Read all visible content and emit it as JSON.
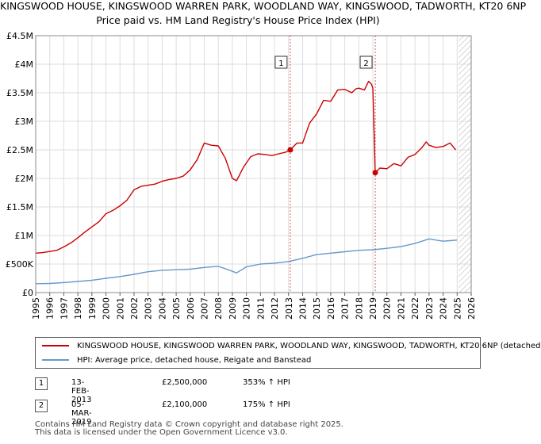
{
  "header": {
    "title_line1": "KINGSWOOD HOUSE, KINGSWOOD WARREN PARK, WOODLAND WAY, KINGSWOOD, TADWORTH, KT20 6NP",
    "title_line2": "Price paid vs. HM Land Registry's House Price Index (HPI)"
  },
  "colors": {
    "property": "#cc0000",
    "hpi": "#6699cc",
    "marker_line": "#cc0000",
    "grid": "#dddddd"
  },
  "legend": {
    "property_label": "KINGSWOOD HOUSE, KINGSWOOD WARREN PARK, WOODLAND WAY, KINGSWOOD, TADWORTH, KT20 6NP (detached",
    "hpi_label": "HPI: Average price, detached house, Reigate and Banstead"
  },
  "sales": [
    {
      "id": "1",
      "date": "13-FEB-2013",
      "price": "£2,500,000",
      "hpi": "353% ↑ HPI"
    },
    {
      "id": "2",
      "date": "05-MAR-2019",
      "price": "£2,100,000",
      "hpi": "175% ↑ HPI"
    }
  ],
  "footer": {
    "line1": "Contains HM Land Registry data © Crown copyright and database right 2025.",
    "line2": "This data is licensed under the Open Government Licence v3.0."
  },
  "chart_data": {
    "type": "line",
    "title": "KINGSWOOD HOUSE, KINGSWOOD WARREN PARK, WOODLAND WAY, KINGSWOOD, TADWORTH, KT20 6NP",
    "subtitle": "Price paid vs. HM Land Registry's House Price Index (HPI)",
    "xlabel": "",
    "ylabel": "",
    "xlim": [
      1995,
      2026
    ],
    "ylim": [
      0,
      4500000
    ],
    "y_ticks": [
      0,
      500000,
      1000000,
      1500000,
      2000000,
      2500000,
      3000000,
      3500000,
      4000000,
      4500000
    ],
    "y_tick_labels": [
      "£0",
      "£500K",
      "£1M",
      "£1.5M",
      "£2M",
      "£2.5M",
      "£3M",
      "£3.5M",
      "£4M",
      "£4.5M"
    ],
    "x_ticks": [
      1995,
      1996,
      1997,
      1998,
      1999,
      2000,
      2001,
      2002,
      2003,
      2004,
      2005,
      2006,
      2007,
      2008,
      2009,
      2010,
      2011,
      2012,
      2013,
      2014,
      2015,
      2016,
      2017,
      2018,
      2019,
      2020,
      2021,
      2022,
      2023,
      2024,
      2025,
      2026
    ],
    "x_tick_labels": [
      "1995",
      "1996",
      "1997",
      "1998",
      "1999",
      "2000",
      "2001",
      "2002",
      "2003",
      "2004",
      "2005",
      "2006",
      "2007",
      "2008",
      "2009",
      "2010",
      "2011",
      "2012",
      "2013",
      "2014",
      "2015",
      "2016",
      "2017",
      "2018",
      "2019",
      "2020",
      "2021",
      "2022",
      "2023",
      "2024",
      "2025",
      "2026"
    ],
    "grid": true,
    "forecast_hatch_from": 2025.1,
    "series": [
      {
        "name": "KINGSWOOD HOUSE, KINGSWOOD WARREN PARK, WOODLAND WAY, KINGSWOOD, TADWORTH, KT20 6NP (detached",
        "x": [
          1995.0,
          1995.5,
          1996.0,
          1996.5,
          1997.0,
          1997.5,
          1998.0,
          1998.5,
          1999.0,
          1999.5,
          2000.0,
          2000.5,
          2001.0,
          2001.5,
          2002.0,
          2002.5,
          2003.0,
          2003.5,
          2004.0,
          2004.5,
          2005.0,
          2005.5,
          2006.0,
          2006.5,
          2007.0,
          2007.5,
          2008.0,
          2008.5,
          2009.0,
          2009.3,
          2009.8,
          2010.3,
          2010.8,
          2011.3,
          2011.8,
          2012.3,
          2012.8,
          2013.12,
          2013.6,
          2014.0,
          2014.5,
          2015.0,
          2015.5,
          2016.0,
          2016.5,
          2017.0,
          2017.5,
          2017.8,
          2018.0,
          2018.4,
          2018.7,
          2018.9,
          2019.0,
          2019.17,
          2019.5,
          2020.0,
          2020.5,
          2021.0,
          2021.5,
          2022.0,
          2022.5,
          2022.8,
          2023.0,
          2023.5,
          2024.0,
          2024.5,
          2024.9
        ],
        "y": [
          690000,
          700000,
          720000,
          740000,
          800000,
          870000,
          960000,
          1060000,
          1150000,
          1240000,
          1380000,
          1440000,
          1520000,
          1620000,
          1800000,
          1860000,
          1880000,
          1900000,
          1950000,
          1980000,
          2000000,
          2040000,
          2150000,
          2330000,
          2620000,
          2580000,
          2570000,
          2350000,
          2000000,
          1960000,
          2200000,
          2380000,
          2430000,
          2420000,
          2400000,
          2430000,
          2460000,
          2500000,
          2620000,
          2620000,
          2970000,
          3130000,
          3370000,
          3350000,
          3550000,
          3560000,
          3500000,
          3570000,
          3580000,
          3550000,
          3700000,
          3650000,
          3580000,
          2100000,
          2180000,
          2170000,
          2260000,
          2220000,
          2370000,
          2420000,
          2540000,
          2640000,
          2580000,
          2540000,
          2560000,
          2620000,
          2500000
        ]
      },
      {
        "name": "HPI: Average price, detached house, Reigate and Banstead",
        "x": [
          1995.0,
          1996.0,
          1997.0,
          1998.0,
          1999.0,
          2000.0,
          2001.0,
          2002.0,
          2003.0,
          2004.0,
          2005.0,
          2006.0,
          2007.0,
          2008.0,
          2008.7,
          2009.3,
          2010.0,
          2011.0,
          2012.0,
          2013.0,
          2014.0,
          2015.0,
          2016.0,
          2017.0,
          2018.0,
          2019.0,
          2020.0,
          2021.0,
          2022.0,
          2023.0,
          2023.5,
          2024.0,
          2024.5,
          2025.0
        ],
        "y": [
          155000,
          160000,
          175000,
          195000,
          215000,
          250000,
          280000,
          320000,
          365000,
          390000,
          400000,
          410000,
          440000,
          460000,
          400000,
          345000,
          450000,
          500000,
          515000,
          545000,
          600000,
          665000,
          690000,
          715000,
          740000,
          750000,
          775000,
          805000,
          860000,
          940000,
          920000,
          900000,
          910000,
          920000
        ]
      }
    ],
    "markers": [
      {
        "label": "1",
        "x": 2013.12,
        "y": 2500000
      },
      {
        "label": "2",
        "x": 2019.17,
        "y": 2100000
      }
    ]
  }
}
